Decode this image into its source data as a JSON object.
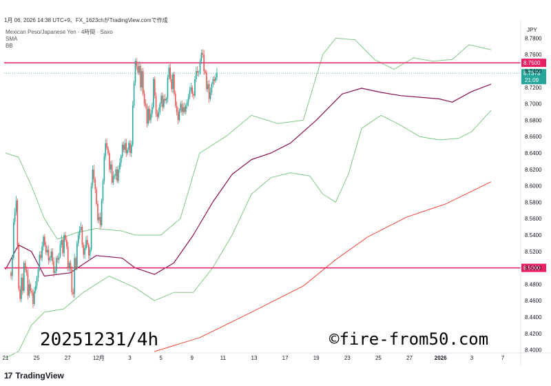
{
  "header": {
    "title": "1月 06, 2026 14:38 UTC+9、FX_1623chがTradingView.comで作成"
  },
  "legend": {
    "symbol": "Mexican Peso/Japanese Yen · 4時間 · Saxo",
    "indicator1": "SMA",
    "indicator2": "BB"
  },
  "overlays": {
    "date_label": "20251231/4h",
    "watermark": "©fire-from50.com"
  },
  "footer": {
    "brand": "TradingView"
  },
  "colors": {
    "up": "#26a69a",
    "down": "#ef5350",
    "bb": "#81c784",
    "sma_short": "#880e4f",
    "sma_long": "#f44336",
    "hline": "#e91e63",
    "last_price": "#26a69a"
  },
  "chart_data": {
    "type": "candlestick",
    "currency_label": "JPY",
    "y_ticks": [
      8.4,
      8.42,
      8.44,
      8.46,
      8.48,
      8.5,
      8.52,
      8.54,
      8.56,
      8.58,
      8.6,
      8.62,
      8.64,
      8.66,
      8.68,
      8.7,
      8.72,
      8.74,
      8.76,
      8.78
    ],
    "ylim": [
      8.398,
      8.798
    ],
    "x_ticks": [
      {
        "label": "21",
        "bar": 0
      },
      {
        "label": "25",
        "bar": 24
      },
      {
        "label": "27",
        "bar": 48
      },
      {
        "label": "12月",
        "bar": 72
      },
      {
        "label": "3",
        "bar": 96
      },
      {
        "label": "5",
        "bar": 120
      },
      {
        "label": "9",
        "bar": 144
      },
      {
        "label": "11",
        "bar": 168
      },
      {
        "label": "13",
        "bar": 192
      },
      {
        "label": "17",
        "bar": 216
      },
      {
        "label": "19",
        "bar": 240
      },
      {
        "label": "23",
        "bar": 264
      },
      {
        "label": "25",
        "bar": 288
      },
      {
        "label": "27",
        "bar": 312
      },
      {
        "label": "2026",
        "bar": 336
      },
      {
        "label": "3",
        "bar": 360
      },
      {
        "label": "7",
        "bar": 384
      }
    ],
    "horizontal_lines": [
      {
        "value": 8.75,
        "label": "8.7500"
      },
      {
        "value": 8.5,
        "label": "8.5000"
      }
    ],
    "last_price": {
      "value": 8.7373,
      "label": "8.7373",
      "countdown": "21:09"
    },
    "closes": [
      8.49,
      8.512,
      8.556,
      8.568,
      8.582,
      8.528,
      8.474,
      8.462,
      8.488,
      8.472,
      8.506,
      8.498,
      8.494,
      8.466,
      8.48,
      8.472,
      8.47,
      8.456,
      8.472,
      8.478,
      8.488,
      8.498,
      8.516,
      8.512,
      8.526,
      8.538,
      8.528,
      8.519,
      8.522,
      8.509,
      8.512,
      8.52,
      8.508,
      8.494,
      8.496,
      8.512,
      8.51,
      8.514,
      8.528,
      8.534,
      8.518,
      8.54,
      8.534,
      8.526,
      8.5,
      8.506,
      8.498,
      8.47,
      8.468,
      8.512,
      8.5,
      8.53,
      8.54,
      8.546,
      8.55,
      8.528,
      8.516,
      8.524,
      8.534,
      8.528,
      8.515,
      8.522,
      8.6,
      8.62,
      8.608,
      8.596,
      8.578,
      8.558,
      8.562,
      8.552,
      8.582,
      8.606,
      8.636,
      8.652,
      8.646,
      8.64,
      8.62,
      8.626,
      8.604,
      8.612,
      8.612,
      8.62,
      8.606,
      8.62,
      8.628,
      8.636,
      8.65,
      8.644,
      8.652,
      8.64,
      8.644,
      8.652,
      8.64,
      8.65,
      8.698,
      8.726,
      8.752,
      8.746,
      8.738,
      8.746,
      8.72,
      8.74,
      8.712,
      8.7,
      8.698,
      8.676,
      8.694,
      8.68,
      8.688,
      8.696,
      8.73,
      8.71,
      8.688,
      8.684,
      8.69,
      8.7,
      8.71,
      8.696,
      8.706,
      8.704,
      8.706,
      8.732,
      8.744,
      8.73,
      8.718,
      8.736,
      8.712,
      8.698,
      8.69,
      8.68,
      8.692,
      8.7,
      8.69,
      8.696,
      8.69,
      8.698,
      8.702,
      8.708,
      8.716,
      8.72,
      8.712,
      8.71,
      8.73,
      8.74,
      8.738,
      8.738,
      8.752,
      8.762,
      8.76,
      8.74,
      8.738,
      8.718,
      8.724,
      8.706,
      8.714,
      8.724,
      8.73,
      8.728,
      8.732,
      8.738
    ],
    "sma_short": {
      "name": "SMA",
      "points": [
        {
          "bar": 0,
          "value": 8.498
        },
        {
          "bar": 10,
          "value": 8.528
        },
        {
          "bar": 20,
          "value": 8.52
        },
        {
          "bar": 30,
          "value": 8.49
        },
        {
          "bar": 50,
          "value": 8.494
        },
        {
          "bar": 70,
          "value": 8.515
        },
        {
          "bar": 90,
          "value": 8.512
        },
        {
          "bar": 100,
          "value": 8.5
        },
        {
          "bar": 115,
          "value": 8.492
        },
        {
          "bar": 130,
          "value": 8.506
        },
        {
          "bar": 145,
          "value": 8.54
        },
        {
          "bar": 160,
          "value": 8.58
        },
        {
          "bar": 175,
          "value": 8.614
        },
        {
          "bar": 190,
          "value": 8.632
        },
        {
          "bar": 205,
          "value": 8.64
        },
        {
          "bar": 220,
          "value": 8.652
        },
        {
          "bar": 240,
          "value": 8.68
        },
        {
          "bar": 260,
          "value": 8.712
        },
        {
          "bar": 275,
          "value": 8.719
        },
        {
          "bar": 290,
          "value": 8.714
        },
        {
          "bar": 305,
          "value": 8.71
        },
        {
          "bar": 320,
          "value": 8.708
        },
        {
          "bar": 335,
          "value": 8.706
        },
        {
          "bar": 345,
          "value": 8.702
        },
        {
          "bar": 360,
          "value": 8.715
        },
        {
          "bar": 375,
          "value": 8.724
        }
      ]
    },
    "sma_long": {
      "name": "SMA",
      "points": [
        {
          "bar": 115,
          "value": 8.398
        },
        {
          "bar": 150,
          "value": 8.415
        },
        {
          "bar": 190,
          "value": 8.446
        },
        {
          "bar": 230,
          "value": 8.478
        },
        {
          "bar": 255,
          "value": 8.51
        },
        {
          "bar": 280,
          "value": 8.538
        },
        {
          "bar": 310,
          "value": 8.562
        },
        {
          "bar": 340,
          "value": 8.578
        },
        {
          "bar": 375,
          "value": 8.605
        }
      ]
    },
    "bb_upper": {
      "name": "BB",
      "points": [
        {
          "bar": 0,
          "value": 8.64
        },
        {
          "bar": 10,
          "value": 8.635
        },
        {
          "bar": 20,
          "value": 8.6
        },
        {
          "bar": 30,
          "value": 8.56
        },
        {
          "bar": 40,
          "value": 8.535
        },
        {
          "bar": 55,
          "value": 8.543
        },
        {
          "bar": 70,
          "value": 8.548
        },
        {
          "bar": 90,
          "value": 8.545
        },
        {
          "bar": 100,
          "value": 8.54
        },
        {
          "bar": 120,
          "value": 8.54
        },
        {
          "bar": 135,
          "value": 8.56
        },
        {
          "bar": 150,
          "value": 8.64
        },
        {
          "bar": 170,
          "value": 8.66
        },
        {
          "bar": 190,
          "value": 8.686
        },
        {
          "bar": 210,
          "value": 8.676
        },
        {
          "bar": 230,
          "value": 8.68
        },
        {
          "bar": 245,
          "value": 8.76
        },
        {
          "bar": 255,
          "value": 8.78
        },
        {
          "bar": 270,
          "value": 8.778
        },
        {
          "bar": 285,
          "value": 8.754
        },
        {
          "bar": 300,
          "value": 8.742
        },
        {
          "bar": 315,
          "value": 8.756
        },
        {
          "bar": 330,
          "value": 8.752
        },
        {
          "bar": 345,
          "value": 8.754
        },
        {
          "bar": 358,
          "value": 8.772
        },
        {
          "bar": 375,
          "value": 8.766
        }
      ]
    },
    "bb_lower": {
      "name": "BB",
      "points": [
        {
          "bar": 0,
          "value": 8.39
        },
        {
          "bar": 10,
          "value": 8.398
        },
        {
          "bar": 20,
          "value": 8.43
        },
        {
          "bar": 30,
          "value": 8.446
        },
        {
          "bar": 45,
          "value": 8.45
        },
        {
          "bar": 60,
          "value": 8.47
        },
        {
          "bar": 80,
          "value": 8.49
        },
        {
          "bar": 100,
          "value": 8.476
        },
        {
          "bar": 115,
          "value": 8.46
        },
        {
          "bar": 130,
          "value": 8.47
        },
        {
          "bar": 145,
          "value": 8.47
        },
        {
          "bar": 160,
          "value": 8.5
        },
        {
          "bar": 175,
          "value": 8.54
        },
        {
          "bar": 190,
          "value": 8.59
        },
        {
          "bar": 205,
          "value": 8.61
        },
        {
          "bar": 220,
          "value": 8.616
        },
        {
          "bar": 235,
          "value": 8.612
        },
        {
          "bar": 245,
          "value": 8.59
        },
        {
          "bar": 255,
          "value": 8.58
        },
        {
          "bar": 265,
          "value": 8.615
        },
        {
          "bar": 275,
          "value": 8.67
        },
        {
          "bar": 290,
          "value": 8.686
        },
        {
          "bar": 305,
          "value": 8.674
        },
        {
          "bar": 320,
          "value": 8.66
        },
        {
          "bar": 335,
          "value": 8.656
        },
        {
          "bar": 350,
          "value": 8.658
        },
        {
          "bar": 360,
          "value": 8.666
        },
        {
          "bar": 375,
          "value": 8.692
        }
      ]
    }
  }
}
